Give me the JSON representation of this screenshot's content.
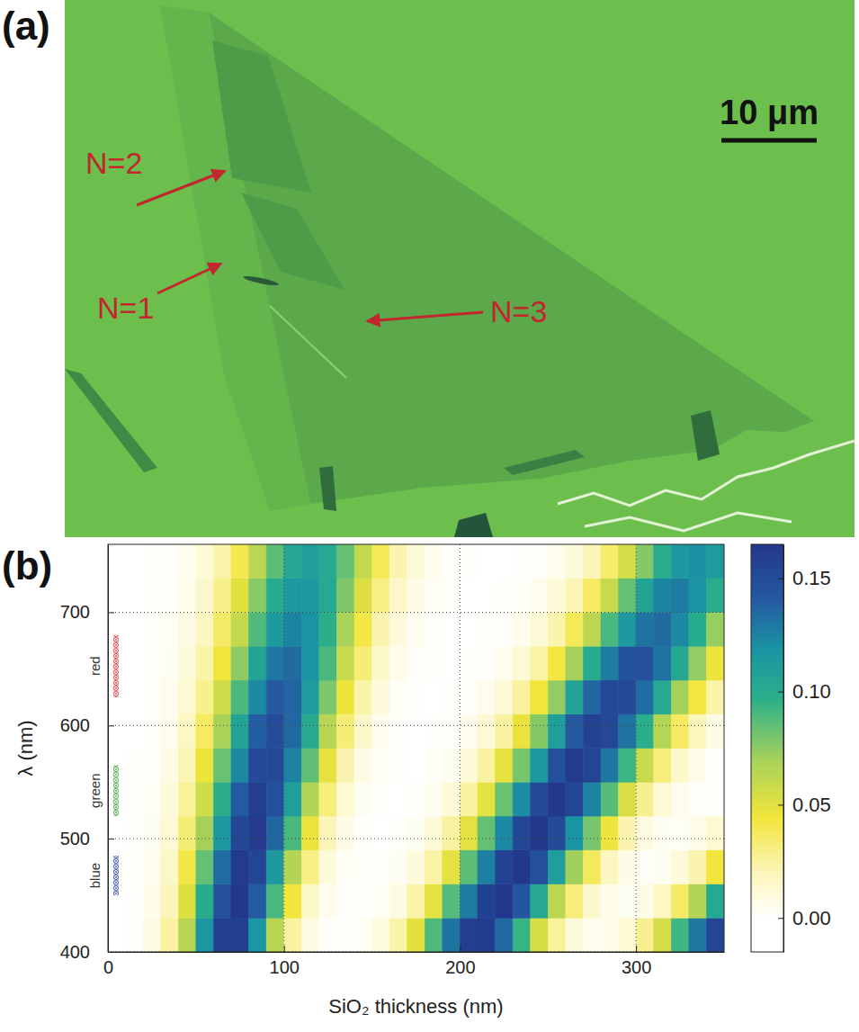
{
  "image": {
    "label": "(a)",
    "annotations": [
      "N=2",
      "N=1",
      "N=3"
    ],
    "scale_bar": "10 μm"
  },
  "chart_data": {
    "type": "heatmap",
    "label": "(b)",
    "x_label": "SiO₂ thickness (nm)",
    "y_label": "λ (nm)",
    "xlim": [
      0,
      350
    ],
    "ylim": [
      400,
      760
    ],
    "xticks": [
      0,
      100,
      200,
      300
    ],
    "yticks": [
      400,
      500,
      600,
      700
    ],
    "grid": true,
    "x_bins": [
      0,
      10,
      20,
      30,
      40,
      50,
      60,
      70,
      80,
      90,
      100,
      110,
      120,
      130,
      140,
      150,
      160,
      170,
      180,
      190,
      200,
      210,
      220,
      230,
      240,
      250,
      260,
      270,
      280,
      290,
      300,
      310,
      320,
      330,
      340,
      350
    ],
    "y_bins": [
      400,
      430,
      460,
      490,
      520,
      550,
      580,
      610,
      640,
      670,
      700,
      730,
      760
    ],
    "z": [
      [
        0.0,
        0.002,
        0.008,
        0.025,
        0.064,
        0.117,
        0.159,
        0.159,
        0.117,
        0.064,
        0.025,
        0.008,
        0.002,
        0.001,
        0.003,
        0.009,
        0.023,
        0.05,
        0.089,
        0.131,
        0.16,
        0.162,
        0.135,
        0.094,
        0.054,
        0.026,
        0.01,
        0.005,
        0.006,
        0.012,
        0.028,
        0.055,
        0.092,
        0.13,
        0.155
      ],
      [
        0.0,
        0.001,
        0.006,
        0.02,
        0.051,
        0.1,
        0.147,
        0.165,
        0.14,
        0.09,
        0.044,
        0.016,
        0.005,
        0.001,
        0.001,
        0.003,
        0.009,
        0.023,
        0.049,
        0.087,
        0.128,
        0.158,
        0.164,
        0.142,
        0.103,
        0.063,
        0.032,
        0.014,
        0.006,
        0.004,
        0.007,
        0.017,
        0.036,
        0.066,
        0.103
      ],
      [
        0.0,
        0.001,
        0.005,
        0.016,
        0.042,
        0.084,
        0.133,
        0.163,
        0.155,
        0.115,
        0.066,
        0.03,
        0.01,
        0.003,
        0.001,
        0.001,
        0.004,
        0.01,
        0.024,
        0.049,
        0.086,
        0.126,
        0.156,
        0.165,
        0.147,
        0.111,
        0.071,
        0.038,
        0.018,
        0.007,
        0.003,
        0.004,
        0.01,
        0.022,
        0.044
      ],
      [
        0.0,
        0.001,
        0.004,
        0.012,
        0.033,
        0.07,
        0.116,
        0.154,
        0.163,
        0.136,
        0.09,
        0.047,
        0.02,
        0.007,
        0.002,
        0.0,
        0.001,
        0.004,
        0.011,
        0.025,
        0.049,
        0.084,
        0.123,
        0.154,
        0.165,
        0.151,
        0.118,
        0.08,
        0.046,
        0.022,
        0.009,
        0.004,
        0.003,
        0.006,
        0.013
      ],
      [
        0.0,
        0.001,
        0.003,
        0.01,
        0.026,
        0.057,
        0.099,
        0.14,
        0.16,
        0.147,
        0.11,
        0.066,
        0.032,
        0.013,
        0.004,
        0.001,
        0.0,
        0.001,
        0.004,
        0.011,
        0.025,
        0.049,
        0.083,
        0.121,
        0.152,
        0.165,
        0.155,
        0.125,
        0.087,
        0.053,
        0.028,
        0.012,
        0.005,
        0.002,
        0.002
      ],
      [
        0.0,
        0.001,
        0.002,
        0.008,
        0.021,
        0.046,
        0.083,
        0.123,
        0.151,
        0.152,
        0.125,
        0.085,
        0.048,
        0.022,
        0.008,
        0.003,
        0.001,
        0.0,
        0.002,
        0.004,
        0.011,
        0.025,
        0.048,
        0.08,
        0.116,
        0.147,
        0.162,
        0.155,
        0.129,
        0.093,
        0.059,
        0.032,
        0.015,
        0.006,
        0.002
      ],
      [
        0.0,
        0.0,
        0.002,
        0.006,
        0.017,
        0.037,
        0.069,
        0.107,
        0.139,
        0.15,
        0.135,
        0.102,
        0.064,
        0.033,
        0.015,
        0.005,
        0.002,
        0.0,
        0.001,
        0.002,
        0.005,
        0.012,
        0.025,
        0.047,
        0.077,
        0.111,
        0.141,
        0.157,
        0.153,
        0.131,
        0.098,
        0.065,
        0.037,
        0.019,
        0.008
      ],
      [
        0.0,
        0.0,
        0.002,
        0.005,
        0.013,
        0.029,
        0.056,
        0.09,
        0.123,
        0.141,
        0.137,
        0.113,
        0.079,
        0.046,
        0.023,
        0.01,
        0.003,
        0.001,
        0.0,
        0.001,
        0.002,
        0.005,
        0.012,
        0.025,
        0.045,
        0.074,
        0.107,
        0.136,
        0.153,
        0.152,
        0.133,
        0.103,
        0.07,
        0.043,
        0.023
      ],
      [
        0.0,
        0.0,
        0.001,
        0.004,
        0.01,
        0.023,
        0.045,
        0.075,
        0.107,
        0.129,
        0.134,
        0.119,
        0.09,
        0.059,
        0.033,
        0.015,
        0.006,
        0.002,
        0.001,
        0.0,
        0.001,
        0.002,
        0.005,
        0.012,
        0.024,
        0.043,
        0.07,
        0.101,
        0.128,
        0.145,
        0.146,
        0.131,
        0.104,
        0.074,
        0.046
      ],
      [
        0.0,
        0.0,
        0.001,
        0.003,
        0.008,
        0.018,
        0.036,
        0.061,
        0.089,
        0.114,
        0.125,
        0.119,
        0.097,
        0.069,
        0.042,
        0.022,
        0.01,
        0.004,
        0.001,
        0.0,
        0.0,
        0.001,
        0.002,
        0.005,
        0.011,
        0.022,
        0.039,
        0.063,
        0.09,
        0.115,
        0.131,
        0.134,
        0.123,
        0.1,
        0.073
      ],
      [
        0.0,
        0.0,
        0.001,
        0.002,
        0.006,
        0.014,
        0.029,
        0.05,
        0.076,
        0.1,
        0.116,
        0.116,
        0.102,
        0.078,
        0.052,
        0.03,
        0.015,
        0.007,
        0.003,
        0.001,
        0.0,
        0.0,
        0.001,
        0.002,
        0.005,
        0.011,
        0.021,
        0.037,
        0.059,
        0.084,
        0.107,
        0.124,
        0.128,
        0.119,
        0.099
      ],
      [
        0.0,
        0.0,
        0.001,
        0.002,
        0.005,
        0.011,
        0.023,
        0.04,
        0.063,
        0.086,
        0.104,
        0.11,
        0.103,
        0.084,
        0.061,
        0.039,
        0.022,
        0.011,
        0.005,
        0.002,
        0.001,
        0.0,
        0.0,
        0.001,
        0.002,
        0.005,
        0.01,
        0.02,
        0.035,
        0.055,
        0.077,
        0.099,
        0.115,
        0.12,
        0.113
      ]
    ],
    "color_range": [
      -0.015,
      0.165
    ],
    "color_ticks": [
      {
        "value": 0,
        "label": "0.00"
      },
      {
        "value": 0.05,
        "label": "0.05"
      },
      {
        "value": 0.1,
        "label": "0.10"
      },
      {
        "value": 0.15,
        "label": "0.15"
      }
    ],
    "bands": [
      {
        "name": "red",
        "range": [
          625,
          680
        ],
        "color": "#e0474c"
      },
      {
        "name": "green",
        "range": [
          520,
          565
        ],
        "color": "#4fae4a"
      },
      {
        "name": "blue",
        "range": [
          450,
          485
        ],
        "color": "#3d58b3"
      }
    ]
  }
}
